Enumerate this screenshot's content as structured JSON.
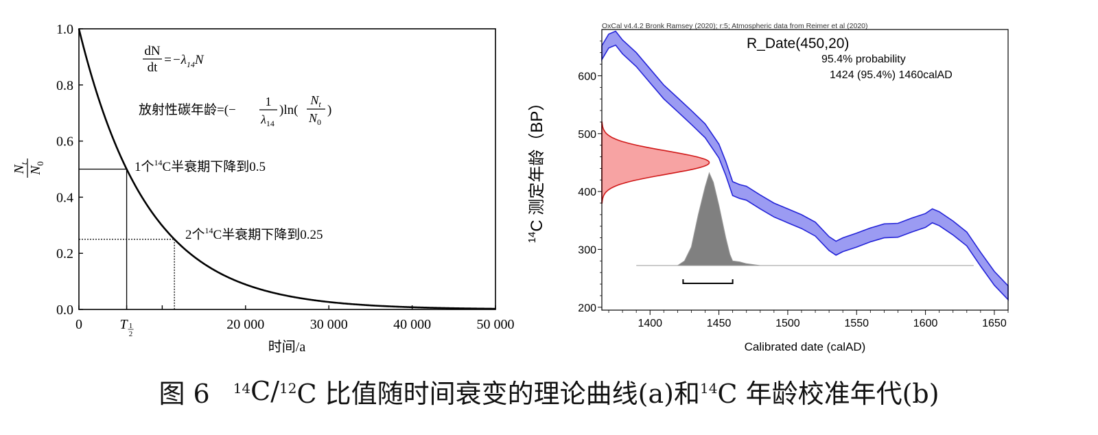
{
  "chart_data": [
    {
      "type": "line",
      "panel": "a",
      "title": "",
      "xlabel": "时间/a",
      "ylabel": "N_t/N_0",
      "xlim": [
        0,
        50000
      ],
      "ylim": [
        0,
        1.0
      ],
      "half_life": 5730,
      "x_tick_values": [
        0,
        20000,
        30000,
        40000,
        50000
      ],
      "x_tick_labels": [
        "0",
        "20 000",
        "30 000",
        "40 000",
        "50 000"
      ],
      "half_life_tick_label": "T",
      "half_life_tick_subscript": "1",
      "half_life_tick_subscript_denominator": "2",
      "y_tick_values": [
        0.0,
        0.2,
        0.4,
        0.6,
        0.8,
        1.0
      ],
      "y_tick_labels": [
        "0.0",
        "0.2",
        "0.4",
        "0.6",
        "0.8",
        "1.0"
      ],
      "ylabel_numerator": "N",
      "ylabel_numerator_sub": "t",
      "ylabel_denominator": "N",
      "ylabel_denominator_sub": "0",
      "equation1": {
        "lhs_num": "dN",
        "lhs_den": "dt",
        "rhs": "=−λ",
        "rhs_sub": "14",
        "rhs_tail": "N"
      },
      "equation2": {
        "prefix": "放射性碳年龄=(−",
        "frac_num": "1",
        "frac_den": "λ",
        "frac_den_sub": "14",
        "mid": ")ln(",
        "frac2_num": "N",
        "frac2_num_sub": "t",
        "frac2_den": "N",
        "frac2_den_sub": "0",
        "suffix": ")"
      },
      "annotations": [
        {
          "x": 5730,
          "y": 0.5,
          "prefix": "1个",
          "sup": "14",
          "text": "C半衰期下降到0.5"
        },
        {
          "x": 11460,
          "y": 0.25,
          "prefix": "2个",
          "sup": "14",
          "text": "C半衰期下降到0.25"
        }
      ]
    },
    {
      "type": "area",
      "panel": "b",
      "header": "OxCal v4.4.2 Bronk Ramsey (2020); r:5; Atmospheric data from Reimer et al (2020)",
      "title": "R_Date(450,20)",
      "subtitle": "95.4% probability",
      "range_text": "1424 (95.4%) 1460calAD",
      "xlabel": "Calibrated date (calAD)",
      "ylabel_sup": "14",
      "ylabel": "C 测定年龄（BP）",
      "xlim": [
        1365,
        1660
      ],
      "ylim": [
        195,
        680
      ],
      "x_ticks": [
        1400,
        1450,
        1500,
        1550,
        1600,
        1650
      ],
      "x_tick_labels": [
        "1400",
        "1450",
        "1500",
        "1550",
        "1600",
        "1650"
      ],
      "y_ticks": [
        200,
        300,
        400,
        500,
        600
      ],
      "y_tick_labels": [
        "200",
        "300",
        "400",
        "500",
        "600"
      ],
      "calibration_curve": {
        "x": [
          1365,
          1370,
          1375,
          1380,
          1390,
          1400,
          1410,
          1420,
          1430,
          1440,
          1450,
          1455,
          1460,
          1465,
          1470,
          1480,
          1490,
          1500,
          1510,
          1520,
          1530,
          1535,
          1540,
          1550,
          1560,
          1570,
          1580,
          1590,
          1600,
          1605,
          1610,
          1620,
          1630,
          1640,
          1650,
          1660
        ],
        "y": [
          640,
          660,
          665,
          650,
          628,
          600,
          572,
          550,
          528,
          505,
          470,
          440,
          405,
          400,
          397,
          382,
          368,
          358,
          348,
          335,
          310,
          302,
          308,
          316,
          325,
          332,
          333,
          342,
          350,
          358,
          353,
          337,
          318,
          283,
          250,
          225
        ],
        "band_half_width": 12
      },
      "measurement": {
        "mean_bp": 450,
        "sigma_bp": 20
      },
      "posterior": {
        "x": [
          1390,
          1420,
          1425,
          1430,
          1435,
          1440,
          1443,
          1446,
          1450,
          1455,
          1458,
          1460,
          1465,
          1470,
          1480,
          1635
        ],
        "density": [
          0,
          0,
          0.05,
          0.2,
          0.55,
          0.85,
          1.0,
          0.9,
          0.65,
          0.3,
          0.12,
          0.05,
          0.04,
          0.02,
          0,
          0
        ]
      },
      "interval_95": [
        1424,
        1460
      ]
    }
  ],
  "caption": {
    "fig": "图 6",
    "sup1": "14",
    "mid1": "C/",
    "sup2": "12",
    "mid2": "C 比值随时间衰变的理论曲线(a)和 ",
    "sup3": "14",
    "tail": "C 年龄校准年代(b)"
  }
}
